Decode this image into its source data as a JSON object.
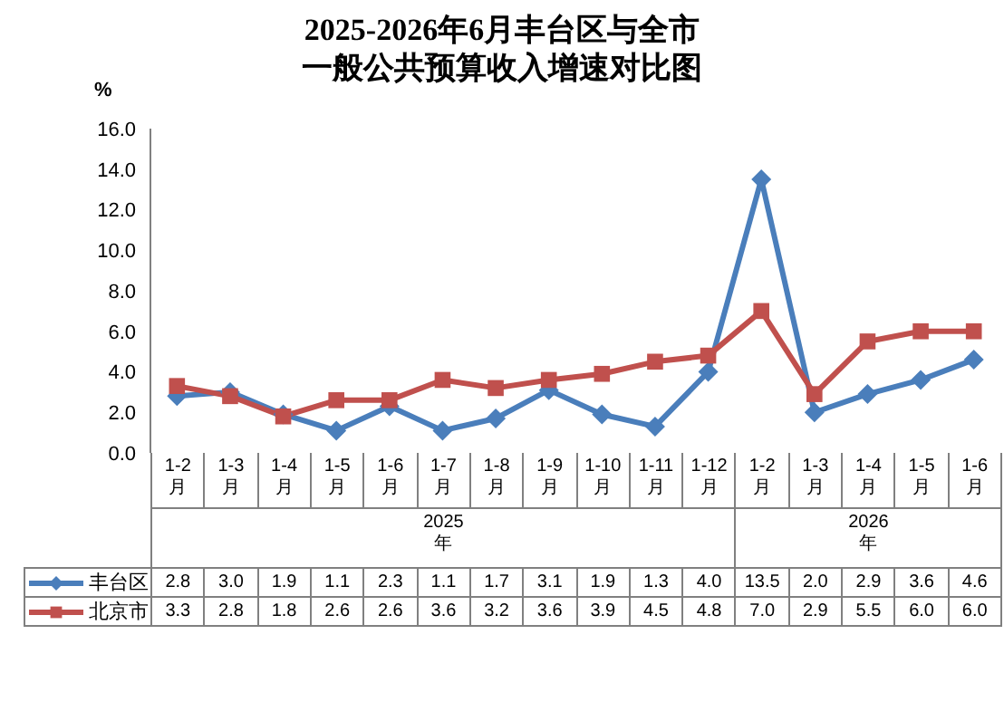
{
  "chart_data": {
    "type": "line",
    "title": "2025-2026年6月丰台区与全市一般公共预算收入增速对比图",
    "ylabel": "%",
    "categories": [
      "1-2月",
      "1-3月",
      "1-4月",
      "1-5月",
      "1-6月",
      "1-7月",
      "1-8月",
      "1-9月",
      "1-10月",
      "1-11月",
      "1-12月",
      "1-2月",
      "1-3月",
      "1-4月",
      "1-5月",
      "1-6月"
    ],
    "annotations": [
      "2025年",
      "2026年"
    ],
    "series": [
      {
        "name": "丰台区",
        "color": "#4a7ebb",
        "marker": "diamond",
        "values": [
          2.8,
          3.0,
          1.9,
          1.1,
          2.3,
          1.1,
          1.7,
          3.1,
          1.9,
          1.3,
          4.0,
          13.5,
          2.0,
          2.9,
          3.6,
          4.6
        ],
        "value_labels": [
          "2.8",
          "3.0",
          "1.9",
          "1.1",
          "2.3",
          "1.1",
          "1.7",
          "3.1",
          "1.9",
          "1.3",
          "4.0",
          "13.5",
          "2.0",
          "2.9",
          "3.6",
          "4.6"
        ]
      },
      {
        "name": "北京市",
        "color": "#c0504d",
        "marker": "square",
        "values": [
          3.3,
          2.8,
          1.8,
          2.6,
          2.6,
          3.6,
          3.2,
          3.6,
          3.9,
          4.5,
          4.8,
          7.0,
          2.9,
          5.5,
          6.0,
          6.0
        ],
        "value_labels": [
          "3.3",
          "2.8",
          "1.8",
          "2.6",
          "2.6",
          "3.6",
          "3.2",
          "3.6",
          "3.9",
          "4.5",
          "4.8",
          "7.0",
          "2.9",
          "5.5",
          "6.0",
          "6.0"
        ]
      }
    ],
    "ylim": [
      0,
      16
    ],
    "yticks": [
      {
        "value": 0,
        "label": "0.0"
      },
      {
        "value": 2,
        "label": "2.0"
      },
      {
        "value": 4,
        "label": "4.0"
      },
      {
        "value": 6,
        "label": "6.0"
      },
      {
        "value": 8,
        "label": "8.0"
      },
      {
        "value": 10,
        "label": "10.0"
      },
      {
        "value": 12,
        "label": "12.0"
      },
      {
        "value": 14,
        "label": "14.0"
      },
      {
        "value": 16,
        "label": "16.0"
      }
    ],
    "grid": false,
    "legend": "bottom left"
  }
}
